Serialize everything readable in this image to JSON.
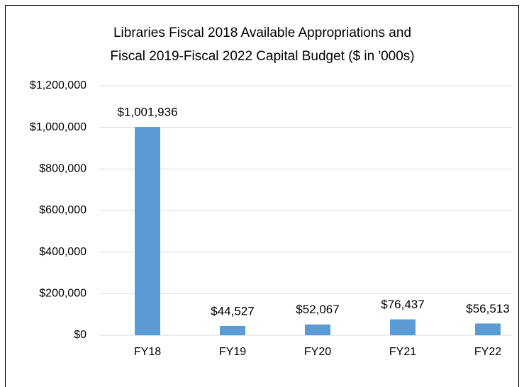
{
  "chart_data": {
    "type": "bar",
    "title": [
      "Libraries Fiscal 2018 Available Appropriations and",
      "Fiscal 2019-Fiscal 2022 Capital Budget ($ in '000s)"
    ],
    "categories": [
      "FY18",
      "FY19",
      "FY20",
      "FY21",
      "FY22"
    ],
    "values": [
      1001936,
      44527,
      52067,
      76437,
      56513
    ],
    "value_labels": [
      "$1,001,936",
      "$44,527",
      "$52,067",
      "$76,437",
      "$56,513"
    ],
    "color": "#5b9bd5",
    "ylim": [
      0,
      1200000
    ],
    "yticks": [
      {
        "value": 0,
        "label": "$0"
      },
      {
        "value": 200000,
        "label": "$200,000"
      },
      {
        "value": 400000,
        "label": "$400,000"
      },
      {
        "value": 600000,
        "label": "$600,000"
      },
      {
        "value": 800000,
        "label": "$800,000"
      },
      {
        "value": 1000000,
        "label": "$1,000,000"
      },
      {
        "value": 1200000,
        "label": "$1,200,000"
      }
    ],
    "grid": true
  }
}
